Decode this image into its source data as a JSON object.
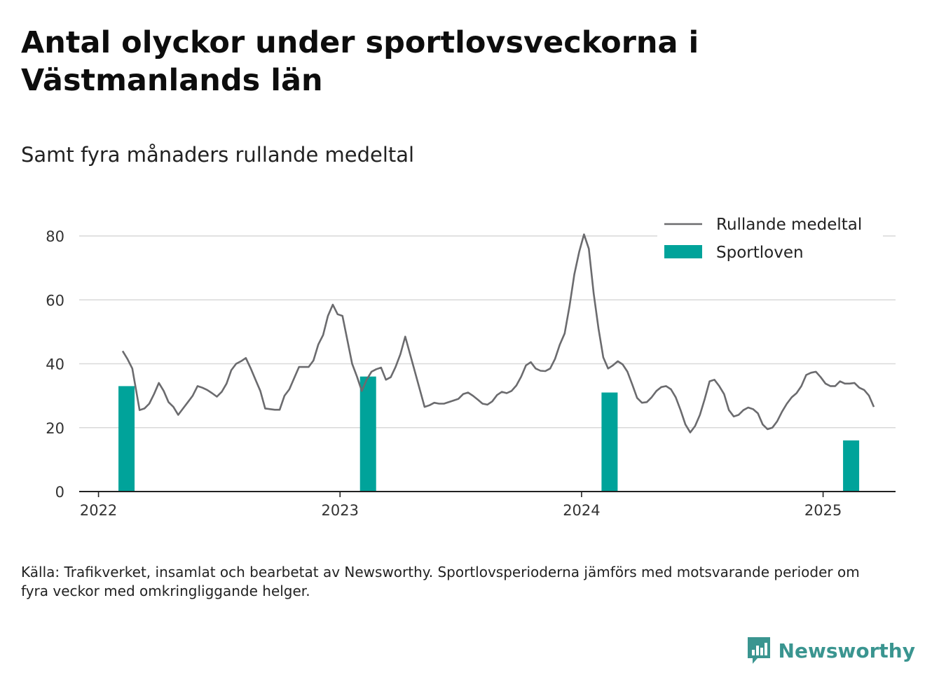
{
  "title": "Antal olyckor under sportlovsveckorna i Västmanlands län",
  "subtitle": "Samt fyra månaders rullande medeltal",
  "source": "Källa: Trafikverket, insamlat och bearbetat av Newsworthy. Sportlovsperioderna jämförs med motsvarande perioder om fyra veckor med omkringliggande helger.",
  "brand": {
    "name": "Newsworthy",
    "icon": "newsworthy-logo-icon"
  },
  "colors": {
    "line": "#6b6b6e",
    "bars": "#00a39a",
    "grid": "#d9d9d9",
    "axis": "#222222",
    "brand": "#3a9590"
  },
  "chart_data": {
    "type": "bar+line",
    "ylim": [
      0,
      85
    ],
    "yticks": [
      0,
      20,
      40,
      60,
      80
    ],
    "xticks": [
      "2022",
      "2023",
      "2024",
      "2025"
    ],
    "grid": true,
    "legend_position": "top-right",
    "legend": [
      {
        "label": "Rullande medeltal",
        "kind": "line"
      },
      {
        "label": "Sportloven",
        "kind": "bar"
      }
    ],
    "bars": [
      {
        "x": 2022.116,
        "value": 33
      },
      {
        "x": 2023.116,
        "value": 36
      },
      {
        "x": 2024.116,
        "value": 31
      },
      {
        "x": 2025.116,
        "value": 16
      }
    ],
    "line": [
      [
        2022.1,
        44
      ],
      [
        2022.12,
        41.5
      ],
      [
        2022.14,
        38.5
      ],
      [
        2022.17,
        25.5
      ],
      [
        2022.19,
        26
      ],
      [
        2022.21,
        27.5
      ],
      [
        2022.23,
        30.5
      ],
      [
        2022.25,
        34
      ],
      [
        2022.27,
        31.5
      ],
      [
        2022.29,
        28
      ],
      [
        2022.31,
        26.5
      ],
      [
        2022.33,
        24
      ],
      [
        2022.35,
        26
      ],
      [
        2022.37,
        28
      ],
      [
        2022.39,
        30
      ],
      [
        2022.41,
        33
      ],
      [
        2022.43,
        32.5
      ],
      [
        2022.45,
        31.8
      ],
      [
        2022.47,
        30.8
      ],
      [
        2022.49,
        29.7
      ],
      [
        2022.51,
        31.2
      ],
      [
        2022.53,
        33.8
      ],
      [
        2022.55,
        38
      ],
      [
        2022.57,
        40
      ],
      [
        2022.59,
        40.8
      ],
      [
        2022.61,
        41.8
      ],
      [
        2022.63,
        38.6
      ],
      [
        2022.65,
        35
      ],
      [
        2022.67,
        31.5
      ],
      [
        2022.69,
        26
      ],
      [
        2022.71,
        25.8
      ],
      [
        2022.73,
        25.6
      ],
      [
        2022.75,
        25.6
      ],
      [
        2022.77,
        30
      ],
      [
        2022.79,
        32
      ],
      [
        2022.81,
        35.5
      ],
      [
        2022.83,
        39
      ],
      [
        2022.85,
        39
      ],
      [
        2022.87,
        39
      ],
      [
        2022.89,
        41
      ],
      [
        2022.91,
        46
      ],
      [
        2022.93,
        49
      ],
      [
        2022.95,
        55
      ],
      [
        2022.97,
        58.5
      ],
      [
        2022.99,
        55.5
      ],
      [
        2023.01,
        55
      ],
      [
        2023.03,
        47.5
      ],
      [
        2023.05,
        40
      ],
      [
        2023.07,
        36
      ],
      [
        2023.09,
        31.5
      ],
      [
        2023.11,
        35
      ],
      [
        2023.13,
        37.5
      ],
      [
        2023.15,
        38.3
      ],
      [
        2023.17,
        38.8
      ],
      [
        2023.19,
        35
      ],
      [
        2023.21,
        35.8
      ],
      [
        2023.23,
        39
      ],
      [
        2023.25,
        43
      ],
      [
        2023.27,
        48.5
      ],
      [
        2023.29,
        43
      ],
      [
        2023.31,
        37.5
      ],
      [
        2023.33,
        32
      ],
      [
        2023.35,
        26.5
      ],
      [
        2023.37,
        27
      ],
      [
        2023.39,
        27.8
      ],
      [
        2023.41,
        27.5
      ],
      [
        2023.43,
        27.5
      ],
      [
        2023.45,
        28
      ],
      [
        2023.47,
        28.5
      ],
      [
        2023.49,
        29
      ],
      [
        2023.51,
        30.5
      ],
      [
        2023.53,
        31
      ],
      [
        2023.55,
        30
      ],
      [
        2023.57,
        28.8
      ],
      [
        2023.59,
        27.5
      ],
      [
        2023.61,
        27.2
      ],
      [
        2023.63,
        28.2
      ],
      [
        2023.65,
        30.2
      ],
      [
        2023.67,
        31.2
      ],
      [
        2023.69,
        30.8
      ],
      [
        2023.71,
        31.5
      ],
      [
        2023.73,
        33.2
      ],
      [
        2023.75,
        36
      ],
      [
        2023.77,
        39.5
      ],
      [
        2023.79,
        40.5
      ],
      [
        2023.81,
        38.5
      ],
      [
        2023.83,
        37.8
      ],
      [
        2023.85,
        37.7
      ],
      [
        2023.87,
        38.5
      ],
      [
        2023.89,
        41.5
      ],
      [
        2023.91,
        46
      ],
      [
        2023.93,
        49.5
      ],
      [
        2023.95,
        58
      ],
      [
        2023.97,
        68
      ],
      [
        2023.99,
        75
      ],
      [
        2024.01,
        80.5
      ],
      [
        2024.03,
        76
      ],
      [
        2024.05,
        62
      ],
      [
        2024.07,
        51
      ],
      [
        2024.09,
        42
      ],
      [
        2024.11,
        38.5
      ],
      [
        2024.13,
        39.5
      ],
      [
        2024.15,
        40.8
      ],
      [
        2024.17,
        39.8
      ],
      [
        2024.19,
        37.5
      ],
      [
        2024.21,
        33.5
      ],
      [
        2024.23,
        29.3
      ],
      [
        2024.25,
        27.8
      ],
      [
        2024.27,
        28
      ],
      [
        2024.29,
        29.5
      ],
      [
        2024.31,
        31.5
      ],
      [
        2024.33,
        32.7
      ],
      [
        2024.35,
        33
      ],
      [
        2024.37,
        32
      ],
      [
        2024.39,
        29.5
      ],
      [
        2024.41,
        25.5
      ],
      [
        2024.43,
        21
      ],
      [
        2024.45,
        18.5
      ],
      [
        2024.47,
        20.5
      ],
      [
        2024.49,
        24
      ],
      [
        2024.51,
        29
      ],
      [
        2024.53,
        34.5
      ],
      [
        2024.55,
        35
      ],
      [
        2024.57,
        33
      ],
      [
        2024.59,
        30.5
      ],
      [
        2024.61,
        25.5
      ],
      [
        2024.63,
        23.5
      ],
      [
        2024.65,
        24
      ],
      [
        2024.67,
        25.5
      ],
      [
        2024.69,
        26.3
      ],
      [
        2024.71,
        25.8
      ],
      [
        2024.73,
        24.5
      ],
      [
        2024.75,
        21
      ],
      [
        2024.77,
        19.5
      ],
      [
        2024.79,
        20
      ],
      [
        2024.81,
        22
      ],
      [
        2024.83,
        25
      ],
      [
        2024.85,
        27.5
      ],
      [
        2024.87,
        29.5
      ],
      [
        2024.89,
        30.8
      ],
      [
        2024.91,
        33
      ],
      [
        2024.93,
        36.5
      ],
      [
        2024.95,
        37.2
      ],
      [
        2024.97,
        37.5
      ],
      [
        2024.99,
        35.8
      ],
      [
        2025.01,
        33.8
      ],
      [
        2025.03,
        33
      ],
      [
        2025.05,
        33
      ],
      [
        2025.07,
        34.5
      ],
      [
        2025.09,
        33.8
      ],
      [
        2025.11,
        33.8
      ],
      [
        2025.13,
        34
      ],
      [
        2025.15,
        32.5
      ],
      [
        2025.17,
        31.8
      ],
      [
        2025.19,
        30
      ],
      [
        2025.21,
        26.5
      ]
    ]
  }
}
